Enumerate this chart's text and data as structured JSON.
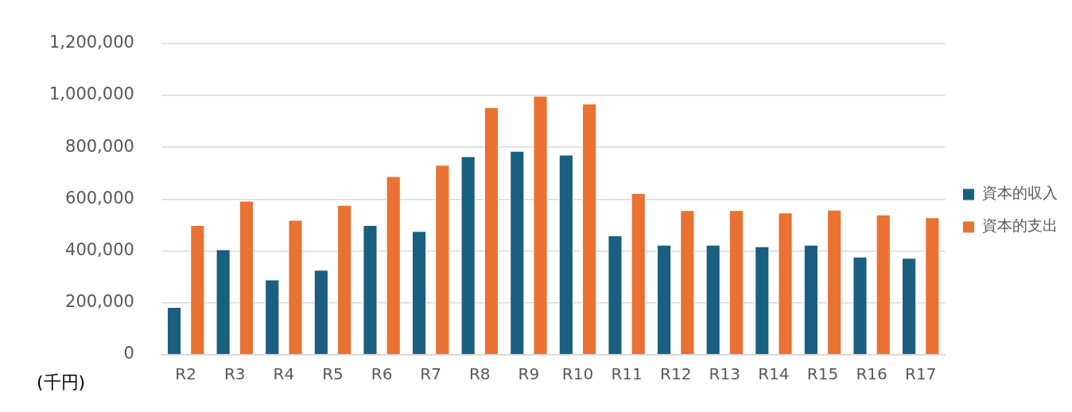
{
  "chart_data": {
    "type": "bar",
    "ylabel": "(千円)",
    "categories": [
      "R2",
      "R3",
      "R4",
      "R5",
      "R6",
      "R7",
      "R8",
      "R9",
      "R10",
      "R11",
      "R12",
      "R13",
      "R14",
      "R15",
      "R16",
      "R17"
    ],
    "series": [
      {
        "name": "資本的収入",
        "color": "#1a5f80",
        "values": [
          184000,
          406000,
          290000,
          327000,
          500000,
          477000,
          765000,
          786000,
          771000,
          460000,
          424000,
          424000,
          418000,
          424000,
          378000,
          373000
        ]
      },
      {
        "name": "資本的支出",
        "color": "#e97132",
        "values": [
          500000,
          593000,
          520000,
          577000,
          688000,
          732000,
          954000,
          998000,
          968000,
          623000,
          557000,
          557000,
          548000,
          559000,
          540000,
          530000
        ]
      }
    ],
    "ylim": [
      0,
      1200000
    ],
    "yticks": [
      0,
      {
        "value": 200000,
        "label": "200,000"
      },
      {
        "value": 400000,
        "label": "400,000"
      },
      {
        "value": 600000,
        "label": "600,000"
      },
      {
        "value": 800000,
        "label": "800,000"
      },
      {
        "value": 1000000,
        "label": "1,000,000"
      },
      {
        "value": 1200000,
        "label": "1,200,000"
      }
    ],
    "grid": "y",
    "legend": "right"
  }
}
